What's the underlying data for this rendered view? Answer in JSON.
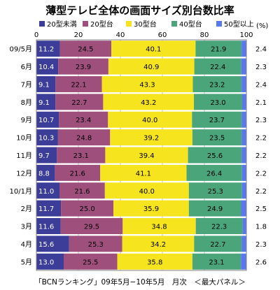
{
  "title": "薄型テレビ全体の画面サイズ別台数比率",
  "footer": "「BCNランキング」09年5月−10年5月　月次　＜最大パネル＞",
  "chart_data": {
    "type": "bar",
    "orientation": "horizontal",
    "stacked": true,
    "xlim": [
      0,
      100
    ],
    "xticks": [
      0,
      20,
      40,
      60,
      80,
      100
    ],
    "unit_label": "(%)",
    "grid": true,
    "legend_position": "top",
    "categories": [
      "09/5月",
      "6月",
      "7月",
      "8月",
      "9月",
      "10月",
      "11月",
      "12月",
      "10/1月",
      "2月",
      "3月",
      "4月",
      "5月"
    ],
    "series": [
      {
        "name": "20型未満",
        "color": "#3b3d99",
        "values": [
          11.2,
          10.4,
          9.1,
          9.1,
          10.7,
          10.3,
          9.7,
          8.8,
          11.0,
          11.7,
          11.6,
          15.6,
          13.0
        ]
      },
      {
        "name": "20型台",
        "color": "#9e4f7c",
        "values": [
          24.5,
          23.9,
          22.1,
          22.7,
          23.4,
          24.8,
          23.1,
          21.6,
          21.6,
          25.0,
          29.5,
          25.3,
          25.5
        ]
      },
      {
        "name": "30型台",
        "color": "#f6e51e",
        "values": [
          40.1,
          40.9,
          43.3,
          43.2,
          40.0,
          39.2,
          39.4,
          41.1,
          40.0,
          35.9,
          34.8,
          34.2,
          35.8
        ]
      },
      {
        "name": "40型台",
        "color": "#4aa57a",
        "values": [
          21.9,
          22.4,
          23.2,
          23.0,
          23.7,
          23.5,
          25.6,
          26.4,
          25.3,
          24.9,
          22.3,
          22.7,
          23.1
        ]
      },
      {
        "name": "50型以上",
        "color": "#5a78ee",
        "values": [
          2.4,
          2.3,
          2.4,
          2.1,
          2.3,
          2.2,
          2.2,
          2.2,
          2.2,
          2.5,
          1.8,
          2.3,
          2.6
        ]
      }
    ]
  }
}
